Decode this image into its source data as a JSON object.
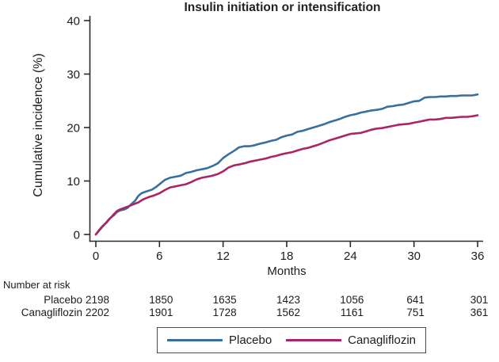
{
  "title": "Insulin initiation or intensification",
  "chart_data": {
    "type": "line",
    "title": "Insulin initiation or intensification",
    "xlabel": "Months",
    "ylabel": "Cumulative incidence (%)",
    "xlim": [
      0,
      36
    ],
    "ylim": [
      0,
      40
    ],
    "xticks": [
      0,
      6,
      12,
      18,
      24,
      30,
      36
    ],
    "yticks": [
      0,
      10,
      20,
      30,
      40
    ],
    "grid": false,
    "legend_position": "bottom",
    "axis_color": "#2b2b2b",
    "series": [
      {
        "name": "Placebo",
        "color": "#376f9f",
        "points": [
          [
            0,
            0
          ],
          [
            0.3,
            0.7
          ],
          [
            0.6,
            1.4
          ],
          [
            1,
            2.3
          ],
          [
            1.3,
            3
          ],
          [
            1.7,
            3.6
          ],
          [
            2,
            4.2
          ],
          [
            2.3,
            4.5
          ],
          [
            2.7,
            4.7
          ],
          [
            3,
            5
          ],
          [
            3.3,
            5.6
          ],
          [
            3.7,
            6.3
          ],
          [
            4,
            7.2
          ],
          [
            4.3,
            7.7
          ],
          [
            4.7,
            8
          ],
          [
            5,
            8.2
          ],
          [
            5.3,
            8.4
          ],
          [
            5.7,
            8.9
          ],
          [
            6,
            9.4
          ],
          [
            6.5,
            10.2
          ],
          [
            7,
            10.6
          ],
          [
            7.5,
            10.8
          ],
          [
            8,
            11
          ],
          [
            8.5,
            11.5
          ],
          [
            9,
            11.7
          ],
          [
            9.5,
            12
          ],
          [
            10,
            12.2
          ],
          [
            10.5,
            12.4
          ],
          [
            11,
            12.8
          ],
          [
            11.5,
            13.3
          ],
          [
            12,
            14.3
          ],
          [
            12.5,
            15
          ],
          [
            13,
            15.6
          ],
          [
            13.5,
            16.3
          ],
          [
            14,
            16.5
          ],
          [
            14.5,
            16.5
          ],
          [
            15,
            16.7
          ],
          [
            15.5,
            17
          ],
          [
            16,
            17.2
          ],
          [
            16.5,
            17.5
          ],
          [
            17,
            17.7
          ],
          [
            17.5,
            18.2
          ],
          [
            18,
            18.5
          ],
          [
            18.5,
            18.7
          ],
          [
            19,
            19.2
          ],
          [
            19.5,
            19.4
          ],
          [
            20,
            19.7
          ],
          [
            20.5,
            20
          ],
          [
            21,
            20.3
          ],
          [
            21.5,
            20.6
          ],
          [
            22,
            21
          ],
          [
            22.5,
            21.3
          ],
          [
            23,
            21.6
          ],
          [
            23.5,
            22
          ],
          [
            24,
            22.3
          ],
          [
            24.5,
            22.5
          ],
          [
            25,
            22.8
          ],
          [
            25.5,
            23
          ],
          [
            26,
            23.2
          ],
          [
            26.5,
            23.3
          ],
          [
            27,
            23.5
          ],
          [
            27.5,
            23.9
          ],
          [
            28,
            24
          ],
          [
            28.5,
            24.2
          ],
          [
            29,
            24.3
          ],
          [
            29.5,
            24.6
          ],
          [
            30,
            24.9
          ],
          [
            30.5,
            25
          ],
          [
            31,
            25.6
          ],
          [
            31.5,
            25.7
          ],
          [
            32,
            25.7
          ],
          [
            32.5,
            25.8
          ],
          [
            33,
            25.8
          ],
          [
            33.5,
            25.9
          ],
          [
            34,
            25.9
          ],
          [
            34.5,
            26
          ],
          [
            35,
            26
          ],
          [
            35.5,
            26
          ],
          [
            36,
            26.2
          ]
        ]
      },
      {
        "name": "Canagliflozin",
        "color": "#ab2564",
        "points": [
          [
            0,
            0
          ],
          [
            0.3,
            0.8
          ],
          [
            0.6,
            1.5
          ],
          [
            1,
            2.2
          ],
          [
            1.3,
            2.9
          ],
          [
            1.7,
            3.8
          ],
          [
            2,
            4.4
          ],
          [
            2.3,
            4.7
          ],
          [
            2.7,
            5
          ],
          [
            3,
            5.2
          ],
          [
            3.5,
            5.6
          ],
          [
            4,
            6
          ],
          [
            4.5,
            6.6
          ],
          [
            5,
            7
          ],
          [
            5.5,
            7.3
          ],
          [
            6,
            7.7
          ],
          [
            6.5,
            8.3
          ],
          [
            7,
            8.8
          ],
          [
            7.5,
            9
          ],
          [
            8,
            9.2
          ],
          [
            8.5,
            9.4
          ],
          [
            9,
            9.8
          ],
          [
            9.5,
            10.3
          ],
          [
            10,
            10.6
          ],
          [
            10.5,
            10.8
          ],
          [
            11,
            11
          ],
          [
            11.5,
            11.3
          ],
          [
            12,
            11.8
          ],
          [
            12.5,
            12.5
          ],
          [
            13,
            12.9
          ],
          [
            13.5,
            13.1
          ],
          [
            14,
            13.3
          ],
          [
            14.5,
            13.6
          ],
          [
            15,
            13.8
          ],
          [
            15.5,
            14
          ],
          [
            16,
            14.2
          ],
          [
            16.5,
            14.5
          ],
          [
            17,
            14.7
          ],
          [
            17.5,
            15
          ],
          [
            18,
            15.2
          ],
          [
            18.5,
            15.4
          ],
          [
            19,
            15.7
          ],
          [
            19.5,
            16
          ],
          [
            20,
            16.2
          ],
          [
            20.5,
            16.5
          ],
          [
            21,
            16.8
          ],
          [
            21.5,
            17.2
          ],
          [
            22,
            17.6
          ],
          [
            22.5,
            17.9
          ],
          [
            23,
            18.2
          ],
          [
            23.5,
            18.5
          ],
          [
            24,
            18.8
          ],
          [
            24.5,
            18.9
          ],
          [
            25,
            19
          ],
          [
            25.5,
            19.3
          ],
          [
            26,
            19.6
          ],
          [
            26.5,
            19.8
          ],
          [
            27,
            19.9
          ],
          [
            27.5,
            20.1
          ],
          [
            28,
            20.3
          ],
          [
            28.5,
            20.5
          ],
          [
            29,
            20.6
          ],
          [
            29.5,
            20.7
          ],
          [
            30,
            20.9
          ],
          [
            30.5,
            21.1
          ],
          [
            31,
            21.3
          ],
          [
            31.5,
            21.5
          ],
          [
            32,
            21.5
          ],
          [
            32.5,
            21.6
          ],
          [
            33,
            21.8
          ],
          [
            33.5,
            21.8
          ],
          [
            34,
            21.9
          ],
          [
            34.5,
            22
          ],
          [
            35,
            22
          ],
          [
            35.5,
            22.1
          ],
          [
            36,
            22.3
          ]
        ]
      }
    ]
  },
  "risk_table": {
    "heading": "Number at risk",
    "months": [
      0,
      6,
      12,
      18,
      24,
      30,
      36
    ],
    "rows": [
      {
        "label": "Placebo",
        "values": [
          2198,
          1850,
          1635,
          1423,
          1056,
          641,
          301
        ]
      },
      {
        "label": "Canagliflozin",
        "values": [
          2202,
          1901,
          1728,
          1562,
          1161,
          751,
          361
        ]
      }
    ]
  },
  "legend": {
    "items": [
      {
        "label": "Placebo",
        "color": "#376f9f"
      },
      {
        "label": "Canagliflozin",
        "color": "#ab2564"
      }
    ]
  }
}
